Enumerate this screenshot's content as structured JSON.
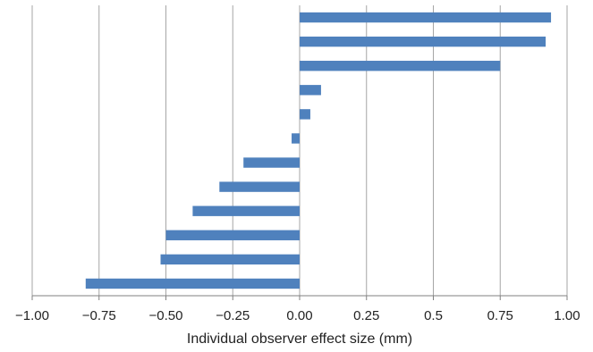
{
  "chart_data": {
    "type": "bar",
    "orientation": "horizontal",
    "xlabel": "Individual observer effect size (mm)",
    "ylabel": "",
    "xlim": [
      -1.0,
      1.0
    ],
    "xticks": [
      -1.0,
      -0.75,
      -0.5,
      -0.25,
      0.0,
      0.25,
      0.5,
      0.75,
      1.0
    ],
    "xtick_labels": [
      "−1.00",
      "−0.75",
      "−0.50",
      "−0.25",
      "0.00",
      "0.25",
      "0.5",
      "0.75",
      "1.00"
    ],
    "values": [
      0.94,
      0.92,
      0.75,
      0.08,
      0.04,
      -0.03,
      -0.21,
      -0.3,
      -0.4,
      -0.5,
      -0.52,
      -0.8
    ],
    "grid": "vertical",
    "legend": "none",
    "bar_color": "#4F81BD",
    "grid_color": "#A6A6A6"
  }
}
